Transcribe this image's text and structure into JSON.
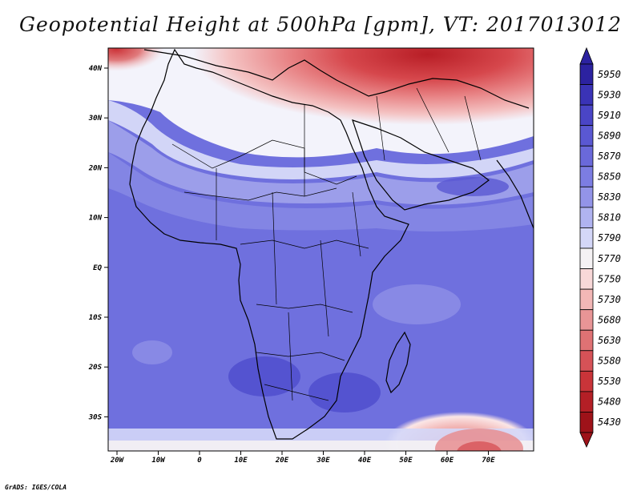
{
  "title": "Geopotential Height at 500hPa [gpm], VT: 2017013012",
  "credit": "GrADS: IGES/COLA",
  "map": {
    "lat_labels": [
      "40N",
      "30N",
      "20N",
      "10N",
      "EQ",
      "10S",
      "20S",
      "30S"
    ],
    "lon_labels": [
      "20W",
      "10W",
      "0",
      "10E",
      "20E",
      "30E",
      "40E",
      "50E",
      "60E",
      "70E"
    ]
  },
  "colorbar": {
    "levels": [
      "5950",
      "5930",
      "5910",
      "5890",
      "5870",
      "5850",
      "5830",
      "5810",
      "5790",
      "5770",
      "5750",
      "5730",
      "5680",
      "5630",
      "5580",
      "5530",
      "5480",
      "5430"
    ],
    "colors": [
      "#2c22a0",
      "#3a33b6",
      "#4a45c6",
      "#5a58d2",
      "#6a69da",
      "#7c7de2",
      "#9394e8",
      "#b0b3f0",
      "#d4d7f8",
      "#f5f2f4",
      "#f8d8d8",
      "#f2b7b6",
      "#e89596",
      "#df7274",
      "#d65257",
      "#c93439",
      "#b41f26",
      "#9e1219"
    ]
  }
}
